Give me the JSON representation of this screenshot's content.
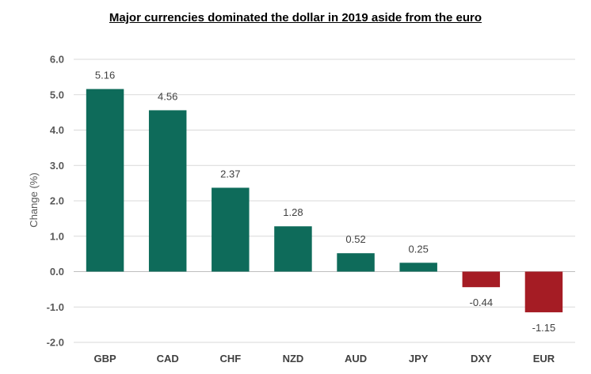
{
  "chart_data": {
    "type": "bar",
    "title": "Major currencies dominated the dollar in 2019 aside from the euro",
    "xlabel": "",
    "ylabel": "Change (%)",
    "categories": [
      "GBP",
      "CAD",
      "CHF",
      "NZD",
      "AUD",
      "JPY",
      "DXY",
      "EUR"
    ],
    "values": [
      5.16,
      4.56,
      2.37,
      1.28,
      0.52,
      0.25,
      -0.44,
      -1.15
    ],
    "data_labels": [
      "5.16",
      "4.56",
      "2.37",
      "1.28",
      "0.52",
      "0.25",
      "-0.44",
      "-1.15"
    ],
    "ylim": [
      -2.0,
      6.0
    ],
    "yticks": [
      6.0,
      5.0,
      4.0,
      3.0,
      2.0,
      1.0,
      0.0,
      -1.0,
      -2.0
    ],
    "ytick_labels": [
      "6.0",
      "5.0",
      "4.0",
      "3.0",
      "2.0",
      "1.0",
      "0.0",
      "-1.0",
      "-2.0"
    ],
    "grid": true,
    "colors": {
      "positive": "#0e6b5a",
      "negative": "#a51c24",
      "grid": "#d9d9d9",
      "axis": "#bfbfbf"
    }
  }
}
